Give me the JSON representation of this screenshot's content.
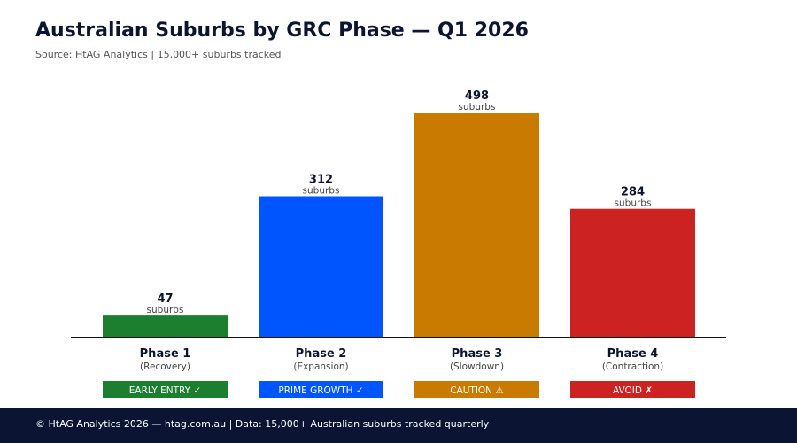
{
  "header": {
    "title": "Australian Suburbs by GRC Phase — Q1 2026",
    "subtitle": "Source: HtAG Analytics | 15,000+ suburbs tracked"
  },
  "chart_data": {
    "type": "bar",
    "categories": [
      "Phase 1",
      "Phase 2",
      "Phase 3",
      "Phase 4"
    ],
    "category_sublabels": [
      "(Recovery)",
      "(Expansion)",
      "(Slowdown)",
      "(Contraction)"
    ],
    "values": [
      47,
      312,
      498,
      284
    ],
    "data_label_unit": "suburbs",
    "colors": [
      "#1c7f2f",
      "#0055ff",
      "#c87b00",
      "#cc2222"
    ],
    "badges": [
      "EARLY ENTRY ✓",
      "PRIME GROWTH ✓",
      "CAUTION ⚠",
      "AVOID ✗"
    ],
    "ylim": [
      0,
      498
    ],
    "grid": false,
    "legend": "none"
  },
  "footer": {
    "text": "© HtAG Analytics 2026 — htag.com.au | Data: 15,000+ Australian suburbs tracked quarterly"
  }
}
